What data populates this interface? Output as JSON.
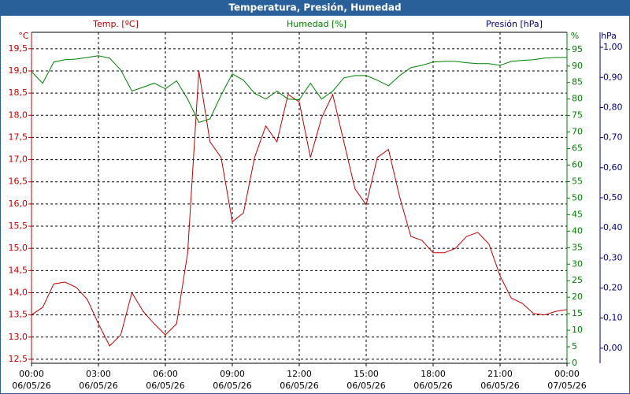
{
  "chart_data": {
    "type": "line",
    "title": "Temperatura, Presión, Humedad",
    "x": [
      0,
      0.5,
      1,
      1.5,
      2,
      2.5,
      3,
      3.5,
      4,
      4.5,
      5,
      5.5,
      6,
      6.5,
      7,
      7.5,
      8,
      8.5,
      9,
      9.5,
      10,
      10.5,
      11,
      11.5,
      12,
      12.5,
      13,
      13.5,
      14,
      14.5,
      15,
      15.5,
      16,
      16.5,
      17,
      17.5,
      18,
      18.5,
      19,
      19.5,
      20,
      20.5,
      21,
      21.5,
      22,
      22.5,
      23,
      23.5,
      24
    ],
    "xlim": [
      0,
      24
    ],
    "xticks": [
      {
        "value": 0,
        "label": "00:00",
        "date": "06/05/26"
      },
      {
        "value": 3,
        "label": "03:00",
        "date": "06/05/26"
      },
      {
        "value": 6,
        "label": "06:00",
        "date": "06/05/26"
      },
      {
        "value": 9,
        "label": "09:00",
        "date": "06/05/26"
      },
      {
        "value": 12,
        "label": "12:00",
        "date": "06/05/26"
      },
      {
        "value": 15,
        "label": "15:00",
        "date": "06/05/26"
      },
      {
        "value": 18,
        "label": "18:00",
        "date": "06/05/26"
      },
      {
        "value": 21,
        "label": "21:00",
        "date": "06/05/26"
      },
      {
        "value": 24,
        "label": "00:00",
        "date": "07/05/26"
      }
    ],
    "ylabel": "°C",
    "ylim": [
      12.41,
      19.87
    ],
    "yticks": [
      {
        "value": 12.5,
        "label": "12,5"
      },
      {
        "value": 13,
        "label": "13,0"
      },
      {
        "value": 13.5,
        "label": "13,5"
      },
      {
        "value": 14,
        "label": "14,0"
      },
      {
        "value": 14.5,
        "label": "14,5"
      },
      {
        "value": 15,
        "label": "15,0"
      },
      {
        "value": 15.5,
        "label": "15,5"
      },
      {
        "value": 16,
        "label": "16,0"
      },
      {
        "value": 16.5,
        "label": "16,5"
      },
      {
        "value": 17,
        "label": "17,0"
      },
      {
        "value": 17.5,
        "label": "17,5"
      },
      {
        "value": 18,
        "label": "18,0"
      },
      {
        "value": 18.5,
        "label": "18,5"
      },
      {
        "value": 19,
        "label": "19,0"
      },
      {
        "value": 19.5,
        "label": "19,5"
      }
    ],
    "y2label": "%",
    "y2lim": [
      0,
      100.2
    ],
    "y2ticks": [
      0,
      5,
      10,
      15,
      20,
      25,
      30,
      35,
      40,
      45,
      50,
      55,
      60,
      65,
      70,
      75,
      80,
      85,
      90,
      95
    ],
    "y3label": "hPa",
    "y3lim": [
      -0.05,
      1.05
    ],
    "y3ticks": [
      {
        "value": 0,
        "label": "0,00"
      },
      {
        "value": 0.1,
        "label": "0,10"
      },
      {
        "value": 0.2,
        "label": "0,20"
      },
      {
        "value": 0.3,
        "label": "0,30"
      },
      {
        "value": 0.4,
        "label": "0,40"
      },
      {
        "value": 0.5,
        "label": "0,50"
      },
      {
        "value": 0.6,
        "label": "0,60"
      },
      {
        "value": 0.7,
        "label": "0,70"
      },
      {
        "value": 0.8,
        "label": "0,80"
      },
      {
        "value": 0.9,
        "label": "0,90"
      },
      {
        "value": 1,
        "label": "1,00"
      }
    ],
    "grid": true,
    "series": [
      {
        "name": "Temp. [ºC]",
        "color": "#c00000",
        "axis": "y",
        "values": [
          13.5,
          13.67,
          14.2,
          14.24,
          14.12,
          13.85,
          13.3,
          12.8,
          13.05,
          14.0,
          13.58,
          13.3,
          13.05,
          13.3,
          14.9,
          19.0,
          17.4,
          17.05,
          15.6,
          15.8,
          17.05,
          17.76,
          17.4,
          18.47,
          18.3,
          17.05,
          17.94,
          18.47,
          17.4,
          16.34,
          15.98,
          17.05,
          17.23,
          16.16,
          15.27,
          15.18,
          14.9,
          14.9,
          15.0,
          15.27,
          15.36,
          15.1,
          14.38,
          13.88,
          13.76,
          13.53,
          13.5,
          13.58,
          13.62
        ]
      },
      {
        "name": "Humedad [%]",
        "color": "#008000",
        "axis": "y2",
        "values": [
          88.3,
          84.8,
          91.2,
          91.9,
          92.1,
          92.6,
          93.1,
          92.4,
          88.8,
          82.4,
          83.6,
          84.8,
          83.1,
          85.5,
          80,
          72.9,
          74,
          81.2,
          87.6,
          85.7,
          81.7,
          80,
          82.4,
          80,
          79.8,
          84.8,
          80,
          82.4,
          86.4,
          87.1,
          87.1,
          85.7,
          84,
          87.1,
          89.5,
          90.2,
          91.2,
          91.4,
          91.4,
          91,
          90.7,
          90.7,
          90.2,
          91.4,
          91.7,
          91.9,
          92.4,
          92.6,
          92.6
        ]
      },
      {
        "name": "Presión [hPa]",
        "color": "#000080",
        "axis": "y3"
      }
    ]
  }
}
